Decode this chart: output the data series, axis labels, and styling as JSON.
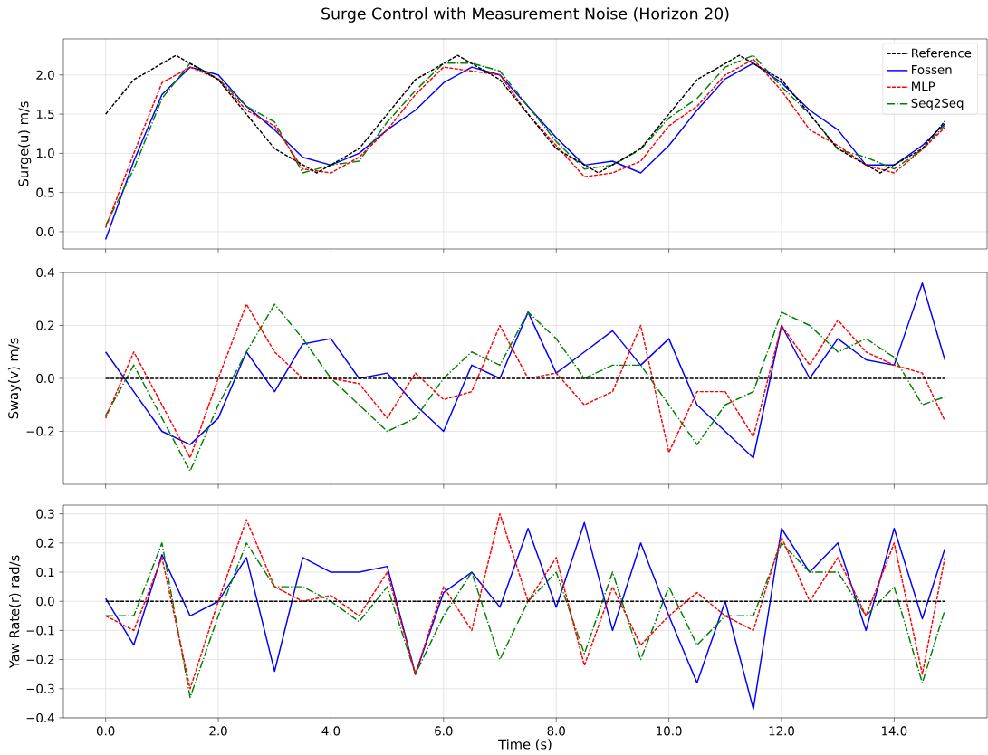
{
  "chart_data": [
    {
      "type": "line",
      "title": "Surge Control with Measurement Noise (Horizon 20)",
      "ylabel": "Surge(u) m/s",
      "x": [
        0,
        0.5,
        1,
        1.5,
        2,
        2.5,
        3,
        3.5,
        4,
        4.5,
        5,
        5.5,
        6,
        6.5,
        7,
        7.5,
        8,
        8.5,
        9,
        9.5,
        10,
        10.5,
        11,
        11.5,
        12,
        12.5,
        13,
        13.5,
        14,
        14.5,
        14.9
      ],
      "series": [
        {
          "name": "Reference",
          "color": "#000000",
          "line_style": "dashed",
          "x": [
            0,
            0.5,
            1.25,
            2,
            2.5,
            3,
            3.75,
            4.5,
            5,
            5.5,
            6.25,
            7,
            7.5,
            8,
            8.75,
            9.5,
            10,
            10.5,
            11.25,
            12,
            12.5,
            13,
            13.75,
            14.5,
            14.9
          ],
          "values": [
            1.5,
            1.94,
            2.25,
            1.94,
            1.5,
            1.06,
            0.75,
            1.06,
            1.5,
            1.94,
            2.25,
            1.94,
            1.5,
            1.06,
            0.75,
            1.06,
            1.5,
            1.94,
            2.25,
            1.94,
            1.5,
            1.06,
            0.75,
            1.06,
            1.41
          ]
        },
        {
          "name": "Fossen",
          "color": "#0000ff",
          "line_style": "solid",
          "values": [
            -0.1,
            0.9,
            1.75,
            2.1,
            2.0,
            1.6,
            1.3,
            0.95,
            0.85,
            1.0,
            1.3,
            1.55,
            1.9,
            2.1,
            2.0,
            1.6,
            1.2,
            0.85,
            0.9,
            0.75,
            1.1,
            1.55,
            1.95,
            2.15,
            1.9,
            1.55,
            1.3,
            0.85,
            0.85,
            1.1,
            1.38
          ]
        },
        {
          "name": "MLP",
          "color": "#ff0000",
          "line_style": "dashed",
          "values": [
            0.05,
            1.0,
            1.9,
            2.1,
            1.95,
            1.55,
            1.35,
            0.8,
            0.75,
            0.95,
            1.3,
            1.75,
            2.1,
            2.05,
            2.0,
            1.5,
            1.1,
            0.7,
            0.75,
            0.9,
            1.35,
            1.6,
            2.0,
            2.2,
            1.8,
            1.3,
            1.1,
            0.85,
            0.75,
            1.05,
            1.33
          ]
        },
        {
          "name": "Seq2Seq",
          "color": "#008000",
          "line_style": "dashdot",
          "values": [
            0.08,
            0.8,
            1.7,
            2.15,
            1.95,
            1.6,
            1.4,
            0.75,
            0.85,
            0.9,
            1.4,
            1.8,
            2.15,
            2.15,
            2.05,
            1.6,
            1.15,
            0.8,
            0.85,
            1.05,
            1.45,
            1.7,
            2.1,
            2.25,
            1.85,
            1.5,
            1.05,
            0.95,
            0.8,
            1.05,
            1.36
          ]
        }
      ],
      "xlim": [
        -0.75,
        15.65
      ],
      "ylim": [
        -0.22,
        2.46
      ],
      "xticks": [
        {
          "value": 0,
          "label": null
        },
        {
          "value": 2,
          "label": null
        },
        {
          "value": 4,
          "label": null
        },
        {
          "value": 6,
          "label": null
        },
        {
          "value": 8,
          "label": null
        },
        {
          "value": 10,
          "label": null
        },
        {
          "value": 12,
          "label": null
        },
        {
          "value": 14,
          "label": null
        }
      ],
      "yticks": [
        {
          "value": 0,
          "label": "0.0"
        },
        {
          "value": 0.5,
          "label": "0.5"
        },
        {
          "value": 1,
          "label": "1.0"
        },
        {
          "value": 1.5,
          "label": "1.5"
        },
        {
          "value": 2,
          "label": "2.0"
        }
      ],
      "tick_labels": "y",
      "grid": true,
      "legend": "top right"
    },
    {
      "type": "line",
      "ylabel": "Sway(v) m/s",
      "x": [
        0,
        0.5,
        1,
        1.5,
        2,
        2.5,
        3,
        3.5,
        4,
        4.5,
        5,
        5.5,
        6,
        6.5,
        7,
        7.5,
        8,
        8.5,
        9,
        9.5,
        10,
        10.5,
        11,
        11.5,
        12,
        12.5,
        13,
        13.5,
        14,
        14.5,
        14.9
      ],
      "series": [
        {
          "color": "#000000",
          "line_style": "dashed",
          "x": [
            0,
            14.9
          ],
          "values": [
            0,
            0
          ]
        },
        {
          "color": "#0000ff",
          "line_style": "solid",
          "values": [
            0.1,
            -0.05,
            -0.2,
            -0.25,
            -0.15,
            0.1,
            -0.05,
            0.13,
            0.15,
            0.0,
            0.02,
            -0.1,
            -0.2,
            0.05,
            0.0,
            0.25,
            0.02,
            0.1,
            0.18,
            0.05,
            0.15,
            -0.1,
            -0.2,
            -0.3,
            0.2,
            0.0,
            0.15,
            0.07,
            0.05,
            0.36,
            0.07
          ]
        },
        {
          "color": "#ff0000",
          "line_style": "dashed",
          "values": [
            -0.15,
            0.1,
            -0.1,
            -0.3,
            0.0,
            0.28,
            0.1,
            0.0,
            0.0,
            -0.02,
            -0.15,
            0.02,
            -0.08,
            -0.05,
            0.2,
            0.0,
            0.02,
            -0.1,
            -0.05,
            0.2,
            -0.28,
            -0.05,
            -0.05,
            -0.22,
            0.2,
            0.05,
            0.22,
            0.1,
            0.05,
            0.02,
            -0.16
          ]
        },
        {
          "color": "#008000",
          "line_style": "dashdot",
          "values": [
            -0.14,
            0.05,
            -0.15,
            -0.35,
            -0.1,
            0.1,
            0.28,
            0.15,
            0.0,
            -0.1,
            -0.2,
            -0.15,
            0.0,
            0.1,
            0.05,
            0.25,
            0.15,
            0.0,
            0.05,
            0.05,
            -0.1,
            -0.25,
            -0.1,
            -0.05,
            0.25,
            0.2,
            0.1,
            0.15,
            0.08,
            -0.1,
            -0.07
          ]
        }
      ],
      "xlim": [
        -0.75,
        15.65
      ],
      "ylim": [
        -0.4,
        0.4
      ],
      "xticks": [
        {
          "value": 0,
          "label": null
        },
        {
          "value": 2,
          "label": null
        },
        {
          "value": 4,
          "label": null
        },
        {
          "value": 6,
          "label": null
        },
        {
          "value": 8,
          "label": null
        },
        {
          "value": 10,
          "label": null
        },
        {
          "value": 12,
          "label": null
        },
        {
          "value": 14,
          "label": null
        }
      ],
      "yticks": [
        {
          "value": -0.2,
          "label": "−0.2"
        },
        {
          "value": 0,
          "label": "0.0"
        },
        {
          "value": 0.2,
          "label": "0.2"
        },
        {
          "value": 0.4,
          "label": "0.4"
        }
      ],
      "tick_labels": "y",
      "grid": true
    },
    {
      "type": "line",
      "ylabel": "Yaw Rate(r) rad/s",
      "xlabel": "Time (s)",
      "x": [
        0,
        0.5,
        1,
        1.5,
        2,
        2.5,
        3,
        3.5,
        4,
        4.5,
        5,
        5.5,
        6,
        6.5,
        7,
        7.5,
        8,
        8.5,
        9,
        9.5,
        10,
        10.5,
        11,
        11.5,
        12,
        12.5,
        13,
        13.5,
        14,
        14.5,
        14.9
      ],
      "series": [
        {
          "color": "#000000",
          "line_style": "dashed",
          "x": [
            0,
            14.9
          ],
          "values": [
            0,
            0
          ]
        },
        {
          "color": "#0000ff",
          "line_style": "solid",
          "values": [
            0.01,
            -0.15,
            0.16,
            -0.05,
            0.0,
            0.15,
            -0.24,
            0.15,
            0.1,
            0.1,
            0.12,
            -0.25,
            0.03,
            0.1,
            -0.02,
            0.25,
            -0.02,
            0.27,
            -0.1,
            0.2,
            -0.05,
            -0.28,
            0.0,
            -0.37,
            0.25,
            0.1,
            0.2,
            -0.1,
            0.25,
            -0.06,
            0.18
          ]
        },
        {
          "color": "#ff0000",
          "line_style": "dashed",
          "values": [
            -0.05,
            -0.1,
            0.15,
            -0.3,
            0.0,
            0.28,
            0.05,
            0.0,
            0.02,
            -0.05,
            0.1,
            -0.25,
            0.05,
            -0.1,
            0.3,
            0.0,
            0.15,
            -0.22,
            0.05,
            -0.15,
            -0.05,
            0.03,
            -0.05,
            -0.1,
            0.22,
            0.0,
            0.15,
            -0.05,
            0.2,
            -0.25,
            0.15
          ]
        },
        {
          "color": "#008000",
          "line_style": "dashdot",
          "values": [
            -0.05,
            -0.05,
            0.2,
            -0.33,
            -0.05,
            0.2,
            0.05,
            0.05,
            0.0,
            -0.07,
            0.05,
            -0.25,
            -0.05,
            0.1,
            -0.2,
            0.0,
            0.1,
            -0.18,
            0.1,
            -0.2,
            0.05,
            -0.15,
            -0.05,
            -0.05,
            0.2,
            0.1,
            0.1,
            -0.05,
            0.05,
            -0.28,
            -0.03
          ]
        }
      ],
      "xlim": [
        -0.75,
        15.65
      ],
      "ylim": [
        -0.4,
        0.33
      ],
      "xticks": [
        {
          "value": 0,
          "label": "0.0"
        },
        {
          "value": 2,
          "label": "2.0"
        },
        {
          "value": 4,
          "label": "4.0"
        },
        {
          "value": 6,
          "label": "6.0"
        },
        {
          "value": 8,
          "label": "8.0"
        },
        {
          "value": 10,
          "label": "10.0"
        },
        {
          "value": 12,
          "label": "12.0"
        },
        {
          "value": 14,
          "label": "14.0"
        }
      ],
      "yticks": [
        {
          "value": -0.4,
          "label": "−0.4"
        },
        {
          "value": -0.3,
          "label": "−0.3"
        },
        {
          "value": -0.2,
          "label": "−0.2"
        },
        {
          "value": -0.1,
          "label": "−0.1"
        },
        {
          "value": 0,
          "label": "0.0"
        },
        {
          "value": 0.1,
          "label": "0.1"
        },
        {
          "value": 0.2,
          "label": "0.2"
        },
        {
          "value": 0.3,
          "label": "0.3"
        }
      ],
      "grid": true
    }
  ]
}
